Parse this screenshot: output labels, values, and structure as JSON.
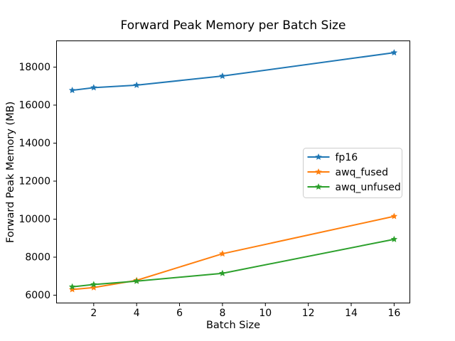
{
  "chart_data": {
    "type": "line",
    "title": "Forward Peak Memory per Batch Size",
    "xlabel": "Batch Size",
    "ylabel": "Forward Peak Memory (MB)",
    "x": [
      1,
      2,
      4,
      8,
      16
    ],
    "series": [
      {
        "name": "fp16",
        "color": "#1f77b4",
        "marker": "star",
        "values": [
          16780,
          16920,
          17050,
          17530,
          18760
        ]
      },
      {
        "name": "awq_fused",
        "color": "#ff7f0e",
        "marker": "star",
        "values": [
          6300,
          6400,
          6780,
          8180,
          10150
        ]
      },
      {
        "name": "awq_unfused",
        "color": "#2ca02c",
        "marker": "star",
        "values": [
          6440,
          6560,
          6740,
          7150,
          8940
        ]
      }
    ],
    "xticks": [
      2,
      4,
      6,
      8,
      10,
      12,
      14,
      16
    ],
    "yticks": [
      6000,
      8000,
      10000,
      12000,
      14000,
      16000,
      18000
    ],
    "xlim": [
      0.25,
      16.75
    ],
    "ylim": [
      5570,
      19400
    ],
    "grid": false,
    "legend_position": "center right",
    "axis_color": "#000000",
    "legend_border_color": "#cccccc",
    "background_color": "#ffffff"
  }
}
